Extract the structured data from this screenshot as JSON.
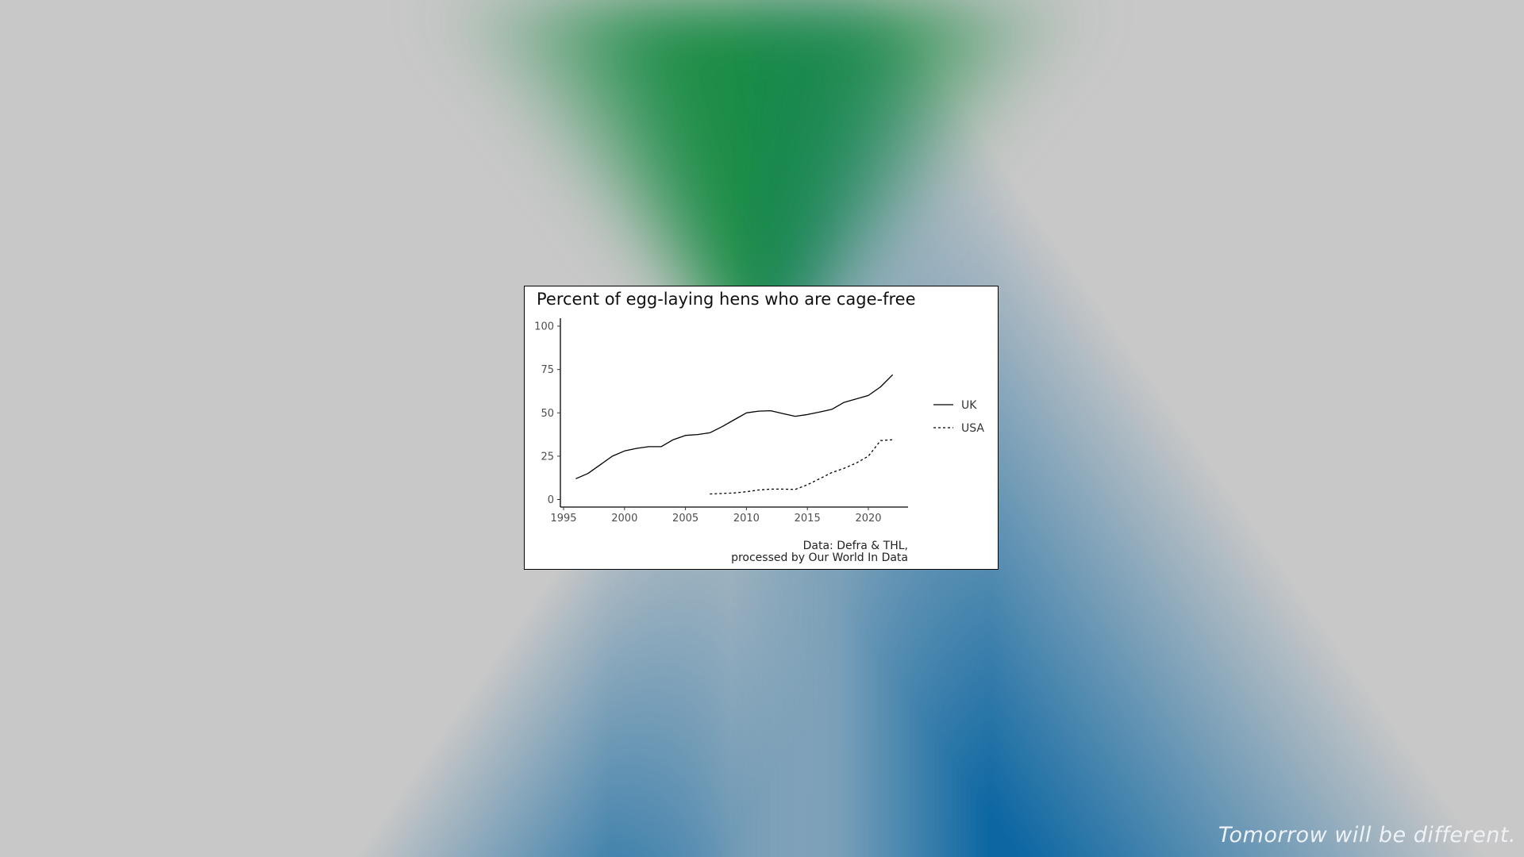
{
  "page": {
    "tagline": "Tomorrow will be different.",
    "colors": {
      "background_gray": "#c8c8c8",
      "background_green": "#1a8c45",
      "background_blue": "#0565a1",
      "card": "#ffffff",
      "line": "#000000"
    }
  },
  "chart_data": {
    "type": "line",
    "title": "Percent of egg-laying hens who are cage-free",
    "xlabel": "",
    "ylabel": "",
    "xlim": [
      1995,
      2023
    ],
    "ylim": [
      0,
      100
    ],
    "x_ticks": [
      1995,
      2000,
      2005,
      2010,
      2015,
      2020
    ],
    "y_ticks": [
      0,
      25,
      50,
      75,
      100
    ],
    "grid": false,
    "legend_position": "right",
    "caption_lines": [
      "Data: Defra & THL,",
      "processed by Our World In Data"
    ],
    "series": [
      {
        "name": "UK",
        "line_style": "solid",
        "x": [
          1996,
          1997,
          1998,
          1999,
          2000,
          2001,
          2002,
          2003,
          2004,
          2005,
          2006,
          2007,
          2008,
          2009,
          2010,
          2011,
          2012,
          2013,
          2014,
          2015,
          2016,
          2017,
          2018,
          2019,
          2020,
          2021,
          2022
        ],
        "y": [
          12,
          15,
          20,
          25,
          28,
          29.5,
          30.5,
          30.5,
          34.5,
          37,
          37.5,
          38.5,
          42,
          46,
          50,
          51,
          51.2,
          49.5,
          48,
          49,
          50.5,
          52,
          56,
          58,
          60,
          65,
          72
        ]
      },
      {
        "name": "USA",
        "line_style": "dotted",
        "x": [
          2007,
          2008,
          2009,
          2010,
          2011,
          2012,
          2013,
          2014,
          2015,
          2016,
          2017,
          2018,
          2019,
          2020,
          2021,
          2022
        ],
        "y": [
          3.2,
          3.5,
          3.8,
          4.5,
          5.5,
          6,
          6,
          5.8,
          8.5,
          12,
          15.5,
          18,
          21,
          25,
          34,
          34.5
        ]
      }
    ]
  }
}
